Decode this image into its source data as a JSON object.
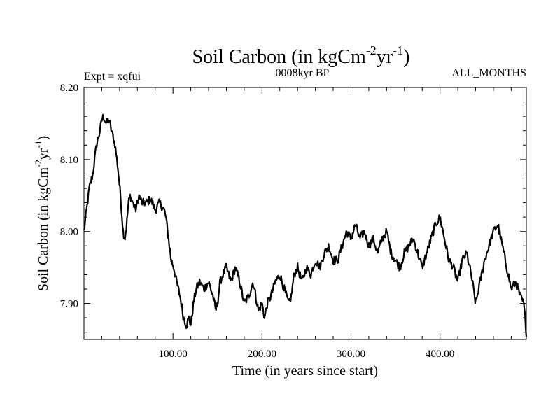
{
  "chart_data": {
    "type": "line",
    "title": "Soil Carbon (in kgCm",
    "title_sup1": "-2",
    "title_mid": "yr",
    "title_sup2": "-1",
    "title_end": ")",
    "subtitle_left": "Expt = xqfui",
    "subtitle_center": "0008kyr BP",
    "subtitle_right": "ALL_MONTHS",
    "xlabel": "Time (in years since start)",
    "ylabel_main": "Soil Carbon (in kgCm",
    "ylabel_sup1": "-2",
    "ylabel_mid": "yr",
    "ylabel_sup2": "-1",
    "ylabel_end": ")",
    "xlim": [
      0,
      497
    ],
    "ylim": [
      7.85,
      8.2
    ],
    "xticks": [
      100,
      200,
      300,
      400
    ],
    "xtick_labels": [
      "100.00",
      "200.00",
      "300.00",
      "400.00"
    ],
    "yticks": [
      7.9,
      8.0,
      8.1,
      8.2
    ],
    "ytick_labels": [
      "7.90",
      "8.00",
      "8.10",
      "8.20"
    ],
    "grid": false,
    "line_color": "#000000",
    "noise_amplitude": 0.006,
    "series": [
      {
        "name": "Soil Carbon",
        "x": [
          0,
          3,
          6,
          10,
          14,
          18,
          20,
          22,
          25,
          28,
          31,
          35,
          38,
          41,
          44,
          46,
          48,
          50,
          52,
          55,
          58,
          62,
          65,
          70,
          75,
          80,
          85,
          90,
          92,
          94,
          96,
          98,
          101,
          104,
          108,
          112,
          115,
          118,
          120,
          123,
          126,
          130,
          135,
          140,
          145,
          148,
          150,
          153,
          156,
          160,
          165,
          170,
          175,
          180,
          185,
          190,
          193,
          196,
          200,
          203,
          206,
          210,
          215,
          220,
          225,
          230,
          233,
          236,
          240,
          245,
          250,
          255,
          260,
          265,
          270,
          275,
          280,
          285,
          290,
          295,
          300,
          305,
          310,
          315,
          320,
          325,
          330,
          335,
          340,
          345,
          350,
          355,
          360,
          365,
          370,
          375,
          380,
          385,
          390,
          395,
          400,
          405,
          410,
          415,
          420,
          425,
          430,
          435,
          440,
          445,
          450,
          455,
          460,
          465,
          470,
          475,
          480,
          485,
          490,
          494,
          497
        ],
        "y": [
          8.0,
          8.03,
          8.06,
          8.08,
          8.12,
          8.14,
          8.155,
          8.16,
          8.15,
          8.155,
          8.14,
          8.12,
          8.09,
          8.05,
          8.0,
          7.99,
          8.01,
          8.04,
          8.05,
          8.04,
          8.03,
          8.05,
          8.04,
          8.04,
          8.045,
          8.03,
          8.04,
          8.03,
          8.02,
          8.0,
          7.98,
          7.96,
          7.95,
          7.93,
          7.91,
          7.88,
          7.87,
          7.88,
          7.87,
          7.9,
          7.92,
          7.93,
          7.92,
          7.93,
          7.91,
          7.89,
          7.9,
          7.93,
          7.94,
          7.95,
          7.93,
          7.95,
          7.93,
          7.9,
          7.91,
          7.93,
          7.91,
          7.89,
          7.9,
          7.88,
          7.9,
          7.91,
          7.93,
          7.94,
          7.92,
          7.9,
          7.91,
          7.94,
          7.95,
          7.93,
          7.95,
          7.94,
          7.96,
          7.95,
          7.97,
          7.98,
          7.96,
          7.96,
          7.98,
          8.0,
          7.99,
          8.01,
          7.99,
          8.0,
          7.98,
          7.99,
          7.97,
          7.99,
          8.0,
          7.97,
          7.96,
          7.95,
          7.97,
          7.98,
          7.99,
          7.97,
          7.95,
          7.97,
          7.99,
          8.01,
          8.02,
          7.99,
          7.96,
          7.95,
          7.93,
          7.96,
          7.97,
          7.94,
          7.9,
          7.93,
          7.96,
          7.98,
          8.0,
          8.01,
          7.98,
          7.95,
          7.92,
          7.93,
          7.91,
          7.9,
          7.86
        ]
      }
    ]
  }
}
